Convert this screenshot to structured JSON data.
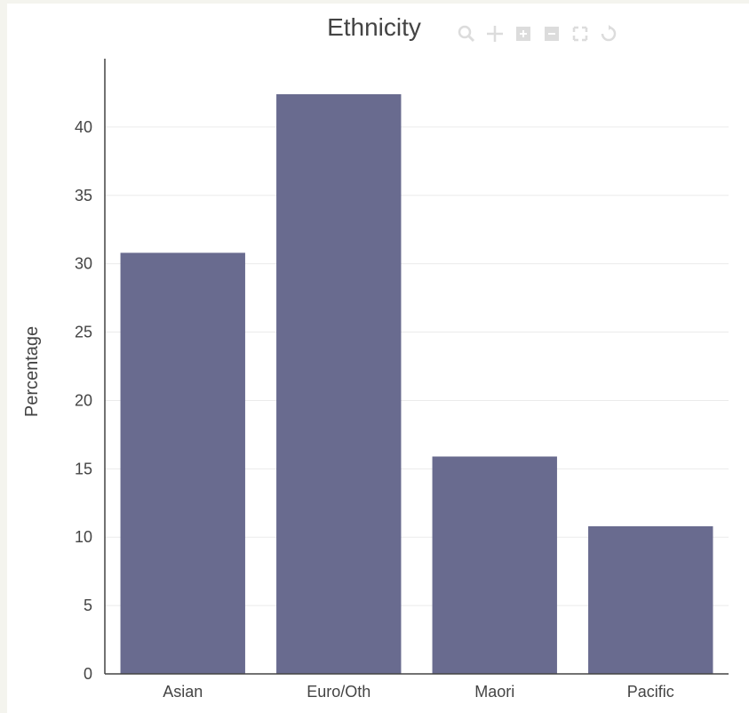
{
  "chart_data": {
    "type": "bar",
    "title": "Ethnicity",
    "xlabel": "",
    "ylabel": "Percentage",
    "categories": [
      "Asian",
      "Euro/Oth",
      "Maori",
      "Pacific"
    ],
    "values": [
      30.8,
      42.4,
      15.9,
      10.8
    ],
    "ylim": [
      0,
      45
    ],
    "yticks": [
      0,
      5,
      10,
      15,
      20,
      25,
      30,
      35,
      40
    ],
    "grid": true,
    "bar_color": "#696b8f"
  },
  "toolbar": {
    "icons": [
      "zoom-icon",
      "pan-icon",
      "zoom-in-icon",
      "zoom-out-icon",
      "autoscale-icon",
      "reset-axes-icon"
    ]
  }
}
